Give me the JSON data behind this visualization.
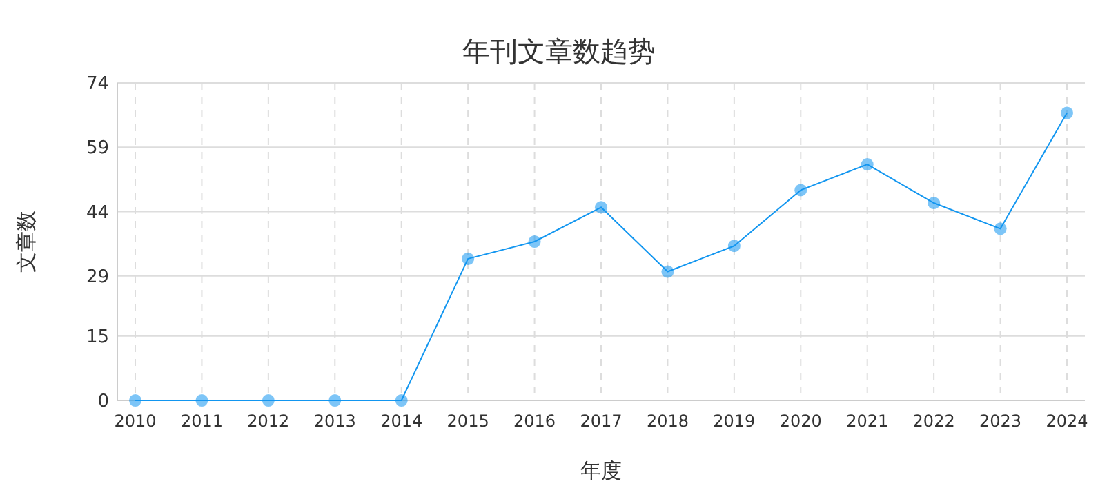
{
  "chart_data": {
    "type": "line",
    "title": "年刊文章数趋势",
    "xlabel": "年度",
    "ylabel": "文章数",
    "categories": [
      "2010",
      "2011",
      "2012",
      "2013",
      "2014",
      "2015",
      "2016",
      "2017",
      "2018",
      "2019",
      "2020",
      "2021",
      "2022",
      "2023",
      "2024"
    ],
    "series": [
      {
        "color": "#1296f0",
        "values": [
          0,
          0,
          0,
          0,
          0,
          33,
          37,
          45,
          30,
          36,
          49,
          55,
          46,
          40,
          67
        ]
      }
    ],
    "ylim": [
      0,
      74
    ],
    "yticks": [
      0,
      15,
      29,
      44,
      59,
      74
    ],
    "grid": true,
    "marker": "circle",
    "line_style": "solid"
  }
}
